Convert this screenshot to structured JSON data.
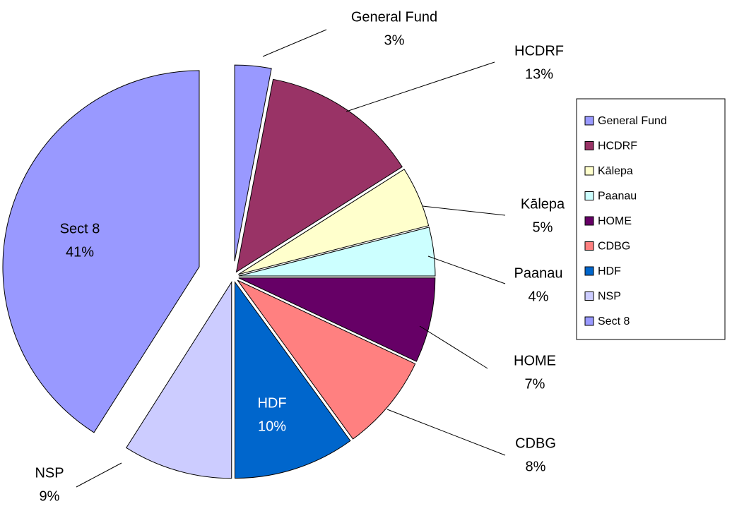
{
  "chart_data": {
    "type": "pie",
    "categories": [
      "General Fund",
      "HCDRF",
      "Kālepa",
      "Paanau",
      "HOME",
      "CDBG",
      "HDF",
      "NSP",
      "Sect 8"
    ],
    "values": [
      3,
      13,
      5,
      4,
      7,
      8,
      10,
      9,
      41
    ],
    "value_labels": [
      "3%",
      "13%",
      "5%",
      "4%",
      "7%",
      "8%",
      "10%",
      "9%",
      "41%"
    ],
    "colors": [
      "#9999ff",
      "#993366",
      "#ffffcc",
      "#ccffff",
      "#660066",
      "#ff8080",
      "#0066cc",
      "#ccccff",
      "#9999ff"
    ],
    "legend": "right"
  }
}
